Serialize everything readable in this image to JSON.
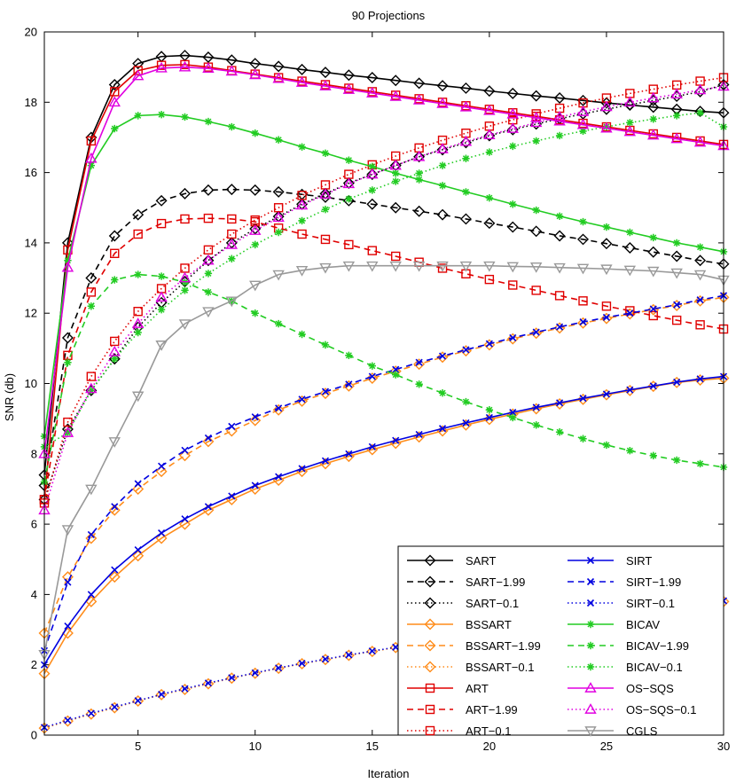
{
  "chart_data": {
    "type": "line",
    "title": "90 Projections",
    "xlabel": "Iteration",
    "ylabel": "SNR (db)",
    "xlim": [
      1,
      30
    ],
    "ylim": [
      0,
      20
    ],
    "xticks": [
      5,
      10,
      15,
      20,
      25,
      30
    ],
    "yticks": [
      0,
      2,
      4,
      6,
      8,
      10,
      12,
      14,
      16,
      18,
      20
    ],
    "legend_position": "bottom-right",
    "series": [
      {
        "name": "SART",
        "color": "#000000",
        "dash": "solid",
        "marker": "diamond",
        "values": [
          7.4,
          14.0,
          17.0,
          18.5,
          19.1,
          19.3,
          19.33,
          19.28,
          19.2,
          19.1,
          19.02,
          18.93,
          18.85,
          18.77,
          18.7,
          18.62,
          18.54,
          18.47,
          18.4,
          18.32,
          18.25,
          18.18,
          18.12,
          18.05,
          17.98,
          17.92,
          17.86,
          17.8,
          17.74,
          17.7
        ]
      },
      {
        "name": "SART−1.99",
        "color": "#000000",
        "dash": "dashed",
        "marker": "diamond",
        "values": [
          7.1,
          11.3,
          13.0,
          14.2,
          14.8,
          15.2,
          15.4,
          15.5,
          15.52,
          15.5,
          15.45,
          15.38,
          15.3,
          15.2,
          15.1,
          15.0,
          14.9,
          14.8,
          14.68,
          14.56,
          14.45,
          14.33,
          14.2,
          14.1,
          13.98,
          13.86,
          13.74,
          13.62,
          13.5,
          13.4
        ]
      },
      {
        "name": "SART−0.1",
        "color": "#000000",
        "dash": "dotted",
        "marker": "diamond",
        "values": [
          6.7,
          8.7,
          9.8,
          10.7,
          11.6,
          12.3,
          12.9,
          13.5,
          14.0,
          14.4,
          14.75,
          15.1,
          15.4,
          15.7,
          15.95,
          16.2,
          16.45,
          16.65,
          16.85,
          17.05,
          17.22,
          17.38,
          17.53,
          17.67,
          17.8,
          17.93,
          18.05,
          18.17,
          18.3,
          18.5
        ]
      },
      {
        "name": "BSSART",
        "color": "#ff8c1a",
        "dash": "solid",
        "marker": "diamond",
        "values": [
          1.75,
          2.9,
          3.8,
          4.5,
          5.1,
          5.6,
          6.0,
          6.4,
          6.7,
          7.0,
          7.25,
          7.5,
          7.72,
          7.93,
          8.12,
          8.3,
          8.48,
          8.65,
          8.82,
          8.98,
          9.13,
          9.28,
          9.42,
          9.55,
          9.68,
          9.8,
          9.92,
          10.03,
          10.1,
          10.15
        ]
      },
      {
        "name": "BSSART−1.99",
        "color": "#ff8c1a",
        "dash": "dashed",
        "marker": "diamond",
        "values": [
          2.9,
          4.5,
          5.6,
          6.4,
          7.0,
          7.5,
          7.95,
          8.35,
          8.65,
          8.95,
          9.25,
          9.5,
          9.72,
          9.93,
          10.15,
          10.35,
          10.55,
          10.75,
          10.93,
          11.1,
          11.27,
          11.43,
          11.58,
          11.72,
          11.85,
          11.98,
          12.1,
          12.22,
          12.35,
          12.45
        ]
      },
      {
        "name": "BSSART−0.1",
        "color": "#ff8c1a",
        "dash": "dotted",
        "marker": "diamond",
        "values": [
          0.2,
          0.4,
          0.6,
          0.78,
          0.97,
          1.15,
          1.3,
          1.46,
          1.62,
          1.76,
          1.9,
          2.03,
          2.15,
          2.27,
          2.38,
          2.49,
          2.6,
          2.7,
          2.8,
          2.9,
          3.0,
          3.1,
          3.2,
          3.3,
          3.4,
          3.5,
          3.58,
          3.66,
          3.73,
          3.8
        ]
      },
      {
        "name": "ART",
        "color": "#e00000",
        "dash": "solid",
        "marker": "square",
        "values": [
          6.7,
          13.8,
          16.9,
          18.3,
          18.9,
          19.05,
          19.07,
          19.0,
          18.9,
          18.8,
          18.7,
          18.6,
          18.5,
          18.4,
          18.3,
          18.2,
          18.1,
          18.0,
          17.9,
          17.8,
          17.7,
          17.6,
          17.5,
          17.4,
          17.3,
          17.2,
          17.1,
          17.0,
          16.9,
          16.8
        ]
      },
      {
        "name": "ART−1.99",
        "color": "#e00000",
        "dash": "dashed",
        "marker": "square",
        "values": [
          6.7,
          10.8,
          12.6,
          13.7,
          14.25,
          14.55,
          14.68,
          14.7,
          14.68,
          14.6,
          14.42,
          14.25,
          14.1,
          13.95,
          13.78,
          13.62,
          13.45,
          13.28,
          13.12,
          12.96,
          12.8,
          12.65,
          12.5,
          12.35,
          12.2,
          12.07,
          11.93,
          11.8,
          11.67,
          11.55
        ]
      },
      {
        "name": "ART−0.1",
        "color": "#e00000",
        "dash": "dotted",
        "marker": "square",
        "values": [
          6.6,
          8.9,
          10.2,
          11.2,
          12.05,
          12.7,
          13.28,
          13.8,
          14.25,
          14.65,
          15.0,
          15.35,
          15.65,
          15.95,
          16.22,
          16.47,
          16.7,
          16.92,
          17.12,
          17.32,
          17.5,
          17.67,
          17.83,
          17.98,
          18.12,
          18.25,
          18.37,
          18.49,
          18.6,
          18.7
        ]
      },
      {
        "name": "SIRT",
        "color": "#0000e0",
        "dash": "solid",
        "marker": "x",
        "values": [
          2.0,
          3.1,
          4.0,
          4.7,
          5.27,
          5.75,
          6.15,
          6.5,
          6.8,
          7.1,
          7.35,
          7.58,
          7.8,
          8.0,
          8.2,
          8.38,
          8.55,
          8.72,
          8.88,
          9.03,
          9.18,
          9.32,
          9.45,
          9.58,
          9.7,
          9.82,
          9.93,
          10.04,
          10.13,
          10.2
        ]
      },
      {
        "name": "SIRT−1.99",
        "color": "#0000e0",
        "dash": "dashed",
        "marker": "x",
        "values": [
          2.4,
          4.35,
          5.7,
          6.5,
          7.15,
          7.65,
          8.1,
          8.45,
          8.78,
          9.05,
          9.3,
          9.55,
          9.77,
          9.98,
          10.2,
          10.4,
          10.6,
          10.78,
          10.96,
          11.13,
          11.3,
          11.46,
          11.61,
          11.75,
          11.88,
          12.0,
          12.12,
          12.24,
          12.38,
          12.5
        ]
      },
      {
        "name": "SIRT−0.1",
        "color": "#0000e0",
        "dash": "dotted",
        "marker": "x",
        "values": [
          0.22,
          0.42,
          0.62,
          0.8,
          0.98,
          1.16,
          1.32,
          1.48,
          1.63,
          1.77,
          1.91,
          2.04,
          2.16,
          2.28,
          2.39,
          2.5,
          2.61,
          2.71,
          2.81,
          2.91,
          3.01,
          3.11,
          3.21,
          3.31,
          3.41,
          3.51,
          3.59,
          3.67,
          3.74,
          3.82
        ]
      },
      {
        "name": "BICAV",
        "color": "#22cc22",
        "dash": "solid",
        "marker": "star",
        "values": [
          8.5,
          13.5,
          16.2,
          17.25,
          17.62,
          17.65,
          17.58,
          17.45,
          17.3,
          17.12,
          16.93,
          16.73,
          16.55,
          16.35,
          16.17,
          15.98,
          15.8,
          15.63,
          15.45,
          15.28,
          15.1,
          14.93,
          14.76,
          14.6,
          14.45,
          14.3,
          14.15,
          14.0,
          13.88,
          13.75
        ]
      },
      {
        "name": "BICAV−1.99",
        "color": "#22cc22",
        "dash": "dashed",
        "marker": "star",
        "values": [
          7.2,
          10.6,
          12.2,
          12.95,
          13.1,
          13.05,
          12.88,
          12.6,
          12.35,
          12.0,
          11.7,
          11.4,
          11.1,
          10.8,
          10.5,
          10.25,
          9.98,
          9.73,
          9.48,
          9.25,
          9.03,
          8.82,
          8.62,
          8.43,
          8.25,
          8.09,
          7.95,
          7.82,
          7.72,
          7.62
        ]
      },
      {
        "name": "BICAV−0.1",
        "color": "#22cc22",
        "dash": "dotted",
        "marker": "star",
        "values": [
          8.2,
          8.6,
          9.8,
          10.7,
          11.45,
          12.1,
          12.65,
          13.13,
          13.55,
          13.95,
          14.3,
          14.63,
          14.95,
          15.25,
          15.5,
          15.75,
          15.98,
          16.2,
          16.4,
          16.58,
          16.75,
          16.9,
          17.05,
          17.18,
          17.3,
          17.42,
          17.52,
          17.62,
          17.7,
          17.3
        ]
      },
      {
        "name": "OS−SQS",
        "color": "#e000e0",
        "dash": "solid",
        "marker": "triangle",
        "values": [
          8.0,
          13.3,
          16.4,
          18.0,
          18.75,
          18.97,
          19.0,
          18.96,
          18.88,
          18.78,
          18.67,
          18.56,
          18.46,
          18.36,
          18.26,
          18.16,
          18.06,
          17.96,
          17.86,
          17.76,
          17.66,
          17.56,
          17.46,
          17.36,
          17.26,
          17.16,
          17.06,
          16.96,
          16.86,
          16.76
        ]
      },
      {
        "name": "OS−SQS−0.1",
        "color": "#e000e0",
        "dash": "dotted",
        "marker": "triangle",
        "values": [
          6.4,
          8.6,
          9.85,
          10.9,
          11.7,
          12.45,
          13.0,
          13.5,
          13.95,
          14.35,
          14.72,
          15.07,
          15.38,
          15.68,
          15.95,
          16.2,
          16.45,
          16.67,
          16.88,
          17.07,
          17.25,
          17.42,
          17.58,
          17.73,
          17.87,
          18.0,
          18.12,
          18.23,
          18.35,
          18.45
        ]
      },
      {
        "name": "CGLS",
        "color": "#999999",
        "dash": "solid",
        "marker": "triangle-down",
        "values": [
          2.3,
          5.85,
          7.0,
          8.35,
          9.65,
          11.1,
          11.7,
          12.05,
          12.35,
          12.8,
          13.1,
          13.22,
          13.3,
          13.35,
          13.35,
          13.35,
          13.35,
          13.35,
          13.35,
          13.35,
          13.33,
          13.32,
          13.3,
          13.28,
          13.26,
          13.23,
          13.2,
          13.15,
          13.1,
          12.95
        ]
      }
    ]
  }
}
